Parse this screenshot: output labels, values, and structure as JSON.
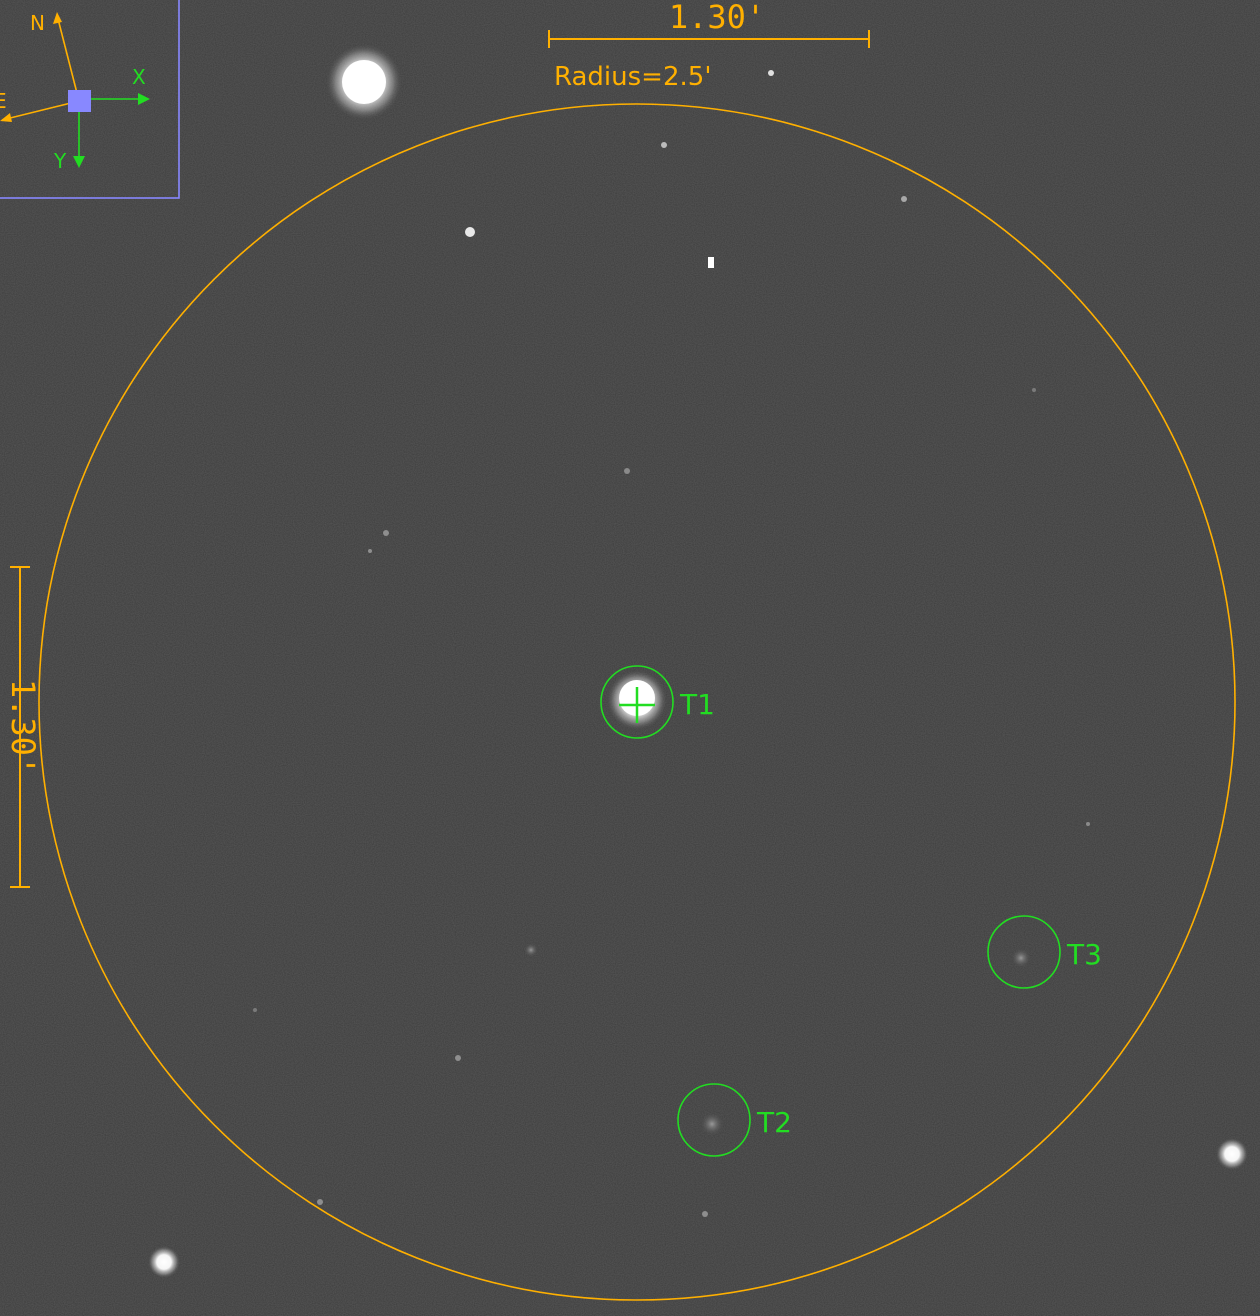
{
  "scale_bar": {
    "horizontal_label": "1.30'",
    "vertical_label": "1.30'"
  },
  "search_circle": {
    "label": "Radius=2.5'"
  },
  "targets": [
    {
      "id": "T1",
      "label": "T1"
    },
    {
      "id": "T2",
      "label": "T2"
    },
    {
      "id": "T3",
      "label": "T3"
    }
  ],
  "compass": {
    "north_label": "N",
    "east_label": "E",
    "x_label": "X",
    "y_label": "Y"
  },
  "colors": {
    "overlay_orange": "#ffb000",
    "marker_green": "#22dd22",
    "compass_box": "#8888ff",
    "sky_background": "#3c3c3c"
  }
}
